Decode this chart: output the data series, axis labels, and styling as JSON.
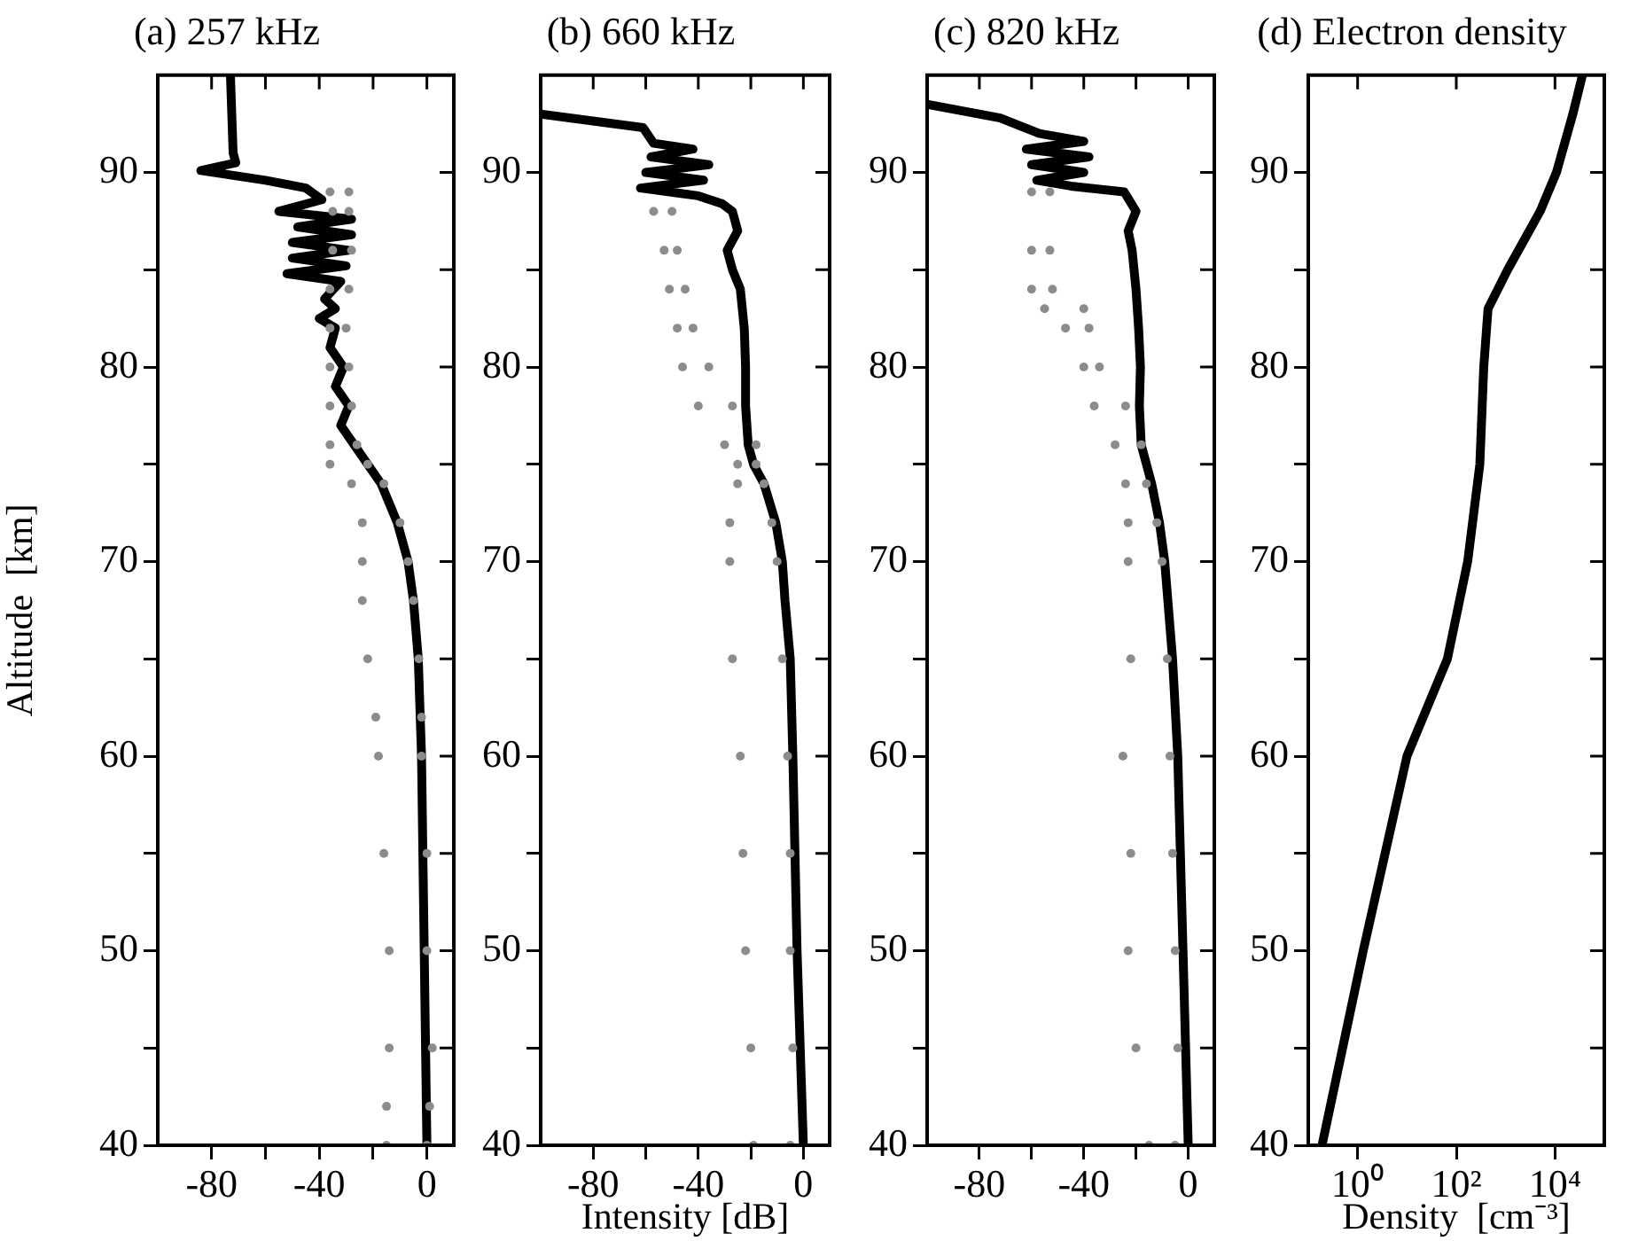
{
  "chart_data": [
    {
      "type": "line",
      "title": "(a) 257 kHz",
      "ylabel": "Altitude  [km]",
      "xlim": [
        -100,
        10
      ],
      "ylim": [
        40,
        95
      ],
      "xticks": [
        -80,
        {
          "value": -60,
          "label": null
        },
        -40,
        {
          "value": -20,
          "label": null
        },
        0
      ],
      "yticks": [
        40,
        {
          "value": 45,
          "label": null
        },
        50,
        {
          "value": 55,
          "label": null
        },
        60,
        {
          "value": 65,
          "label": null
        },
        70,
        {
          "value": 75,
          "label": null
        },
        80,
        {
          "value": 85,
          "label": null
        },
        90
      ],
      "series": [
        {
          "type": "scatter",
          "color": "#8c8c8c",
          "x": [
            -36,
            -29,
            -35,
            -29,
            -35,
            -28,
            -36,
            -29,
            -36,
            -30,
            -36,
            -29,
            -36,
            -28,
            -36,
            -26,
            -36,
            -22,
            -28,
            -16,
            -24,
            -10,
            -24,
            -7,
            -24,
            -5,
            -22,
            -3,
            -19,
            -2,
            -18,
            -2,
            -16,
            0,
            -14,
            0,
            -14,
            2,
            -15,
            1,
            -15,
            0
          ],
          "values": [
            89,
            89,
            88,
            88,
            86,
            86,
            84,
            84,
            82,
            82,
            80,
            80,
            78,
            78,
            76,
            76,
            75,
            75,
            74,
            74,
            72,
            72,
            70,
            70,
            68,
            68,
            65,
            65,
            62,
            62,
            60,
            60,
            55,
            55,
            50,
            50,
            45,
            45,
            42,
            42,
            40,
            40
          ]
        },
        {
          "type": "line",
          "color": "#000000",
          "x": [
            -73,
            -72,
            -71,
            -84,
            -60,
            -45,
            -39,
            -55,
            -28,
            -48,
            -28,
            -50,
            -29,
            -50,
            -30,
            -52,
            -32,
            -38,
            -34,
            -40,
            -34,
            -36,
            -31,
            -34,
            -29,
            -32,
            -27,
            -22,
            -17,
            -11,
            -7,
            -5,
            -3.2,
            -2,
            -1,
            0
          ],
          "values": [
            95,
            91,
            90.5,
            90.1,
            89.6,
            89.2,
            88.6,
            88,
            87.6,
            87.2,
            86.8,
            86.4,
            86,
            85.6,
            85.2,
            84.8,
            84.4,
            83.5,
            83,
            82.5,
            82,
            81,
            80,
            79,
            78,
            77,
            76,
            75,
            74,
            72,
            70,
            68,
            65,
            60,
            50,
            40
          ]
        }
      ]
    },
    {
      "type": "line",
      "title": "(b) 660 kHz",
      "xlabel": "Intensity [dB]",
      "xlim": [
        -100,
        10
      ],
      "ylim": [
        40,
        95
      ],
      "xticks": [
        -80,
        {
          "value": -60,
          "label": null
        },
        -40,
        {
          "value": -20,
          "label": null
        },
        0
      ],
      "yticks": [
        40,
        {
          "value": 45,
          "label": null
        },
        50,
        {
          "value": 55,
          "label": null
        },
        60,
        {
          "value": 65,
          "label": null
        },
        70,
        {
          "value": 75,
          "label": null
        },
        80,
        {
          "value": 85,
          "label": null
        },
        90
      ],
      "series": [
        {
          "type": "scatter",
          "color": "#8c8c8c",
          "x": [
            -57,
            -50,
            -53,
            -48,
            -51,
            -45,
            -48,
            -42,
            -46,
            -36,
            -40,
            -27,
            -30,
            -18,
            -25,
            -18,
            -25,
            -15,
            -28,
            -12,
            -28,
            -10,
            -27,
            -8,
            -24,
            -6,
            -23,
            -5,
            -22,
            -5,
            -20,
            -4,
            -19,
            -5
          ],
          "values": [
            88,
            88,
            86,
            86,
            84,
            84,
            82,
            82,
            80,
            80,
            78,
            78,
            76,
            76,
            75,
            75,
            74,
            74,
            72,
            72,
            70,
            70,
            65,
            65,
            60,
            60,
            55,
            55,
            50,
            50,
            45,
            45,
            40,
            40
          ]
        },
        {
          "type": "line",
          "color": "#000000",
          "x": [
            -100,
            -61,
            -57,
            -42,
            -58,
            -36,
            -60,
            -38,
            -62,
            -40,
            -31,
            -27,
            -25,
            -29,
            -27,
            -24,
            -22.5,
            -22,
            -22,
            -21,
            -19,
            -15,
            -10.5,
            -8,
            -7,
            -5,
            -4,
            -2.4,
            0
          ],
          "values": [
            93,
            92.3,
            91.5,
            91.2,
            90.8,
            90.4,
            90,
            89.6,
            89.2,
            88.8,
            88.4,
            88,
            87,
            86,
            85,
            84,
            82,
            80,
            78,
            76,
            75,
            74,
            72,
            70,
            68,
            65,
            60,
            50,
            40
          ]
        }
      ]
    },
    {
      "type": "line",
      "title": "(c) 820 kHz",
      "xlim": [
        -100,
        10
      ],
      "ylim": [
        40,
        95
      ],
      "xticks": [
        -80,
        {
          "value": -60,
          "label": null
        },
        -40,
        {
          "value": -20,
          "label": null
        },
        0
      ],
      "yticks": [
        40,
        {
          "value": 45,
          "label": null
        },
        50,
        {
          "value": 55,
          "label": null
        },
        60,
        {
          "value": 65,
          "label": null
        },
        70,
        {
          "value": 75,
          "label": null
        },
        80,
        {
          "value": 85,
          "label": null
        },
        90
      ],
      "series": [
        {
          "type": "scatter",
          "color": "#8c8c8c",
          "x": [
            -60,
            -53,
            -60,
            -53,
            -60,
            -52,
            -55,
            -40,
            -47,
            -38,
            -40,
            -34,
            -36,
            -24,
            -28,
            -18,
            -24,
            -16,
            -23,
            -12,
            -23,
            -10,
            -22,
            -8,
            -25,
            -7,
            -22,
            -6,
            -23,
            -5,
            -20,
            -4,
            -15,
            -5
          ],
          "values": [
            89,
            89,
            86,
            86,
            84,
            84,
            83,
            83,
            82,
            82,
            80,
            80,
            78,
            78,
            76,
            76,
            74,
            74,
            72,
            72,
            70,
            70,
            65,
            65,
            60,
            60,
            55,
            55,
            50,
            50,
            45,
            45,
            40,
            40
          ]
        },
        {
          "type": "line",
          "color": "#000000",
          "x": [
            -100,
            -72,
            -57,
            -40,
            -62,
            -38,
            -60,
            -40,
            -58,
            -45,
            -24.5,
            -20,
            -23,
            -21.5,
            -20,
            -19,
            -18.3,
            -18.7,
            -18,
            -16,
            -14,
            -11,
            -9,
            -6,
            -4,
            -2,
            0
          ],
          "values": [
            93.5,
            92.8,
            92,
            91.6,
            91.2,
            90.8,
            90.4,
            90,
            89.6,
            89.3,
            89,
            88,
            87,
            86,
            84,
            82,
            80,
            78,
            76,
            75,
            74,
            72,
            70,
            65,
            60,
            50,
            40
          ]
        }
      ]
    },
    {
      "type": "line",
      "title": "(d) Electron density",
      "xlabel": "Density  [cm⁻³]",
      "log": "x",
      "xlim": [
        0.1,
        100000
      ],
      "ylim": [
        40,
        95
      ],
      "xticks": [
        {
          "value": 1,
          "label": "10⁰"
        },
        {
          "value": 100,
          "label": "10²"
        },
        {
          "value": 10000,
          "label": "10⁴"
        }
      ],
      "yticks": [
        40,
        {
          "value": 45,
          "label": null
        },
        50,
        {
          "value": 55,
          "label": null
        },
        60,
        {
          "value": 65,
          "label": null
        },
        70,
        {
          "value": 75,
          "label": null
        },
        80,
        {
          "value": 85,
          "label": null
        },
        90
      ],
      "series": [
        {
          "type": "line",
          "color": "#000000",
          "x": [
            0.19,
            1.3,
            10,
            66,
            170,
            300,
            360,
            440,
            1100,
            5000,
            10700,
            23000,
            36000
          ],
          "values": [
            40,
            50,
            60,
            65,
            70,
            75,
            80,
            83,
            85,
            88,
            90,
            93,
            95
          ]
        }
      ]
    }
  ]
}
